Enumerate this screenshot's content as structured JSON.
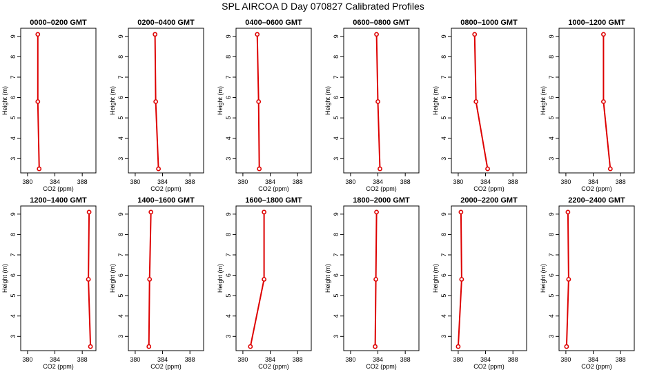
{
  "chart_title": "SPL AIRCOA D  Day 070827  Calibrated Profiles",
  "chart_data": [
    {
      "type": "line",
      "title": "0000–0200 GMT",
      "xlabel": "CO2 (ppm)",
      "ylabel": "Height (m)",
      "xlim": [
        379,
        390
      ],
      "ylim": [
        2.3,
        9.4
      ],
      "x_ticks": [
        380,
        384,
        388
      ],
      "y_ticks": [
        3,
        4,
        5,
        6,
        7,
        8,
        9
      ],
      "x": [
        381.5,
        381.5,
        381.7
      ],
      "y": [
        9.1,
        5.8,
        2.5
      ]
    },
    {
      "type": "line",
      "title": "0200–0400 GMT",
      "xlabel": "CO2 (ppm)",
      "ylabel": "Height (m)",
      "xlim": [
        379,
        390
      ],
      "ylim": [
        2.3,
        9.4
      ],
      "x_ticks": [
        380,
        384,
        388
      ],
      "y_ticks": [
        3,
        4,
        5,
        6,
        7,
        8,
        9
      ],
      "x": [
        382.9,
        383.0,
        383.4
      ],
      "y": [
        9.1,
        5.8,
        2.5
      ]
    },
    {
      "type": "line",
      "title": "0400–0600 GMT",
      "xlabel": "CO2 (ppm)",
      "ylabel": "Height (m)",
      "xlim": [
        379,
        390
      ],
      "ylim": [
        2.3,
        9.4
      ],
      "x_ticks": [
        380,
        384,
        388
      ],
      "y_ticks": [
        3,
        4,
        5,
        6,
        7,
        8,
        9
      ],
      "x": [
        382.1,
        382.3,
        382.4
      ],
      "y": [
        9.1,
        5.8,
        2.5
      ]
    },
    {
      "type": "line",
      "title": "0600–0800 GMT",
      "xlabel": "CO2 (ppm)",
      "ylabel": "Height (m)",
      "xlim": [
        379,
        390
      ],
      "ylim": [
        2.3,
        9.4
      ],
      "x_ticks": [
        380,
        384,
        388
      ],
      "y_ticks": [
        3,
        4,
        5,
        6,
        7,
        8,
        9
      ],
      "x": [
        383.8,
        384.0,
        384.3
      ],
      "y": [
        9.1,
        5.8,
        2.5
      ]
    },
    {
      "type": "line",
      "title": "0800–1000 GMT",
      "xlabel": "CO2 (ppm)",
      "ylabel": "Height (m)",
      "xlim": [
        379,
        390
      ],
      "ylim": [
        2.3,
        9.4
      ],
      "x_ticks": [
        380,
        384,
        388
      ],
      "y_ticks": [
        3,
        4,
        5,
        6,
        7,
        8,
        9
      ],
      "x": [
        382.4,
        382.6,
        384.3
      ],
      "y": [
        9.1,
        5.8,
        2.5
      ]
    },
    {
      "type": "line",
      "title": "1000–1200 GMT",
      "xlabel": "CO2 (ppm)",
      "ylabel": "Height (m)",
      "xlim": [
        379,
        390
      ],
      "ylim": [
        2.3,
        9.4
      ],
      "x_ticks": [
        380,
        384,
        388
      ],
      "y_ticks": [
        3,
        4,
        5,
        6,
        7,
        8,
        9
      ],
      "x": [
        385.5,
        385.5,
        386.5
      ],
      "y": [
        9.1,
        5.8,
        2.5
      ]
    },
    {
      "type": "line",
      "title": "1200–1400 GMT",
      "xlabel": "CO2 (ppm)",
      "ylabel": "Height (m)",
      "xlim": [
        379,
        390
      ],
      "ylim": [
        2.3,
        9.4
      ],
      "x_ticks": [
        380,
        384,
        388
      ],
      "y_ticks": [
        3,
        4,
        5,
        6,
        7,
        8,
        9
      ],
      "x": [
        389.0,
        388.9,
        389.2
      ],
      "y": [
        9.1,
        5.8,
        2.5
      ]
    },
    {
      "type": "line",
      "title": "1400–1600 GMT",
      "xlabel": "CO2 (ppm)",
      "ylabel": "Height (m)",
      "xlim": [
        379,
        390
      ],
      "ylim": [
        2.3,
        9.4
      ],
      "x_ticks": [
        380,
        384,
        388
      ],
      "y_ticks": [
        3,
        4,
        5,
        6,
        7,
        8,
        9
      ],
      "x": [
        382.3,
        382.1,
        382.0
      ],
      "y": [
        9.1,
        5.8,
        2.5
      ]
    },
    {
      "type": "line",
      "title": "1600–1800 GMT",
      "xlabel": "CO2 (ppm)",
      "ylabel": "Height (m)",
      "xlim": [
        379,
        390
      ],
      "ylim": [
        2.3,
        9.4
      ],
      "x_ticks": [
        380,
        384,
        388
      ],
      "y_ticks": [
        3,
        4,
        5,
        6,
        7,
        8,
        9
      ],
      "x": [
        383.1,
        383.1,
        381.1
      ],
      "y": [
        9.1,
        5.8,
        2.5
      ]
    },
    {
      "type": "line",
      "title": "1800–2000 GMT",
      "xlabel": "CO2 (ppm)",
      "ylabel": "Height (m)",
      "xlim": [
        379,
        390
      ],
      "ylim": [
        2.3,
        9.4
      ],
      "x_ticks": [
        380,
        384,
        388
      ],
      "y_ticks": [
        3,
        4,
        5,
        6,
        7,
        8,
        9
      ],
      "x": [
        383.8,
        383.7,
        383.6
      ],
      "y": [
        9.1,
        5.8,
        2.5
      ]
    },
    {
      "type": "line",
      "title": "2000–2200 GMT",
      "xlabel": "CO2 (ppm)",
      "ylabel": "Height (m)",
      "xlim": [
        379,
        390
      ],
      "ylim": [
        2.3,
        9.4
      ],
      "x_ticks": [
        380,
        384,
        388
      ],
      "y_ticks": [
        3,
        4,
        5,
        6,
        7,
        8,
        9
      ],
      "x": [
        380.4,
        380.5,
        380.0
      ],
      "y": [
        9.1,
        5.8,
        2.5
      ]
    },
    {
      "type": "line",
      "title": "2200–2400 GMT",
      "xlabel": "CO2 (ppm)",
      "ylabel": "Height (m)",
      "xlim": [
        379,
        390
      ],
      "ylim": [
        2.3,
        9.4
      ],
      "x_ticks": [
        380,
        384,
        388
      ],
      "y_ticks": [
        3,
        4,
        5,
        6,
        7,
        8,
        9
      ],
      "x": [
        380.3,
        380.4,
        380.1
      ],
      "y": [
        9.1,
        5.8,
        2.5
      ]
    }
  ],
  "colors": {
    "series": "#dd0000",
    "marker_fill": "#ffffff",
    "axis": "#000000",
    "background": "#ffffff"
  }
}
